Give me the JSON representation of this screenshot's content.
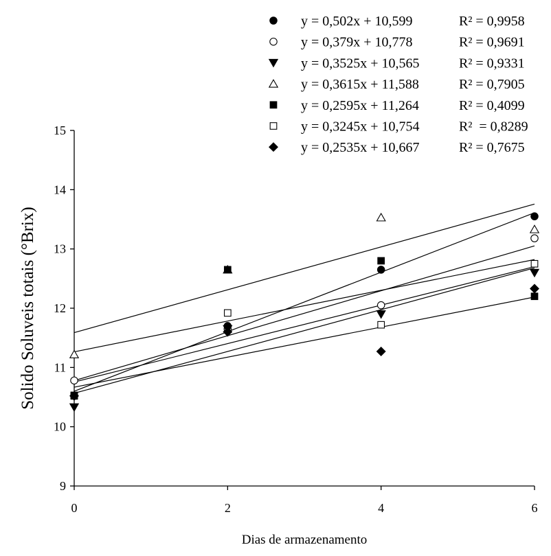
{
  "chart_data": {
    "type": "scatter",
    "xlabel": "Dias de armazenamento",
    "ylabel": "Solido Soluveis totais (°Brix)",
    "xlim": [
      0,
      6
    ],
    "ylim": [
      9,
      15
    ],
    "xticks": [
      "0",
      "2",
      "4",
      "6"
    ],
    "yticks": [
      "9",
      "10",
      "11",
      "12",
      "13",
      "14",
      "15"
    ],
    "grid": false,
    "legend_placement": "top-right",
    "series": [
      {
        "marker": "filled-circle",
        "equation": "y = 0,502x + 10,599",
        "r2": "R² = 0,9958",
        "slope": 0.502,
        "intercept": 10.599,
        "x": [
          0,
          2,
          4,
          6
        ],
        "y": [
          10.52,
          11.7,
          12.65,
          13.55
        ]
      },
      {
        "marker": "open-circle",
        "equation": "y = 0,379x + 10,778",
        "r2": "R² = 0,9691",
        "slope": 0.379,
        "intercept": 10.778,
        "x": [
          0,
          2,
          4,
          6
        ],
        "y": [
          10.78,
          11.65,
          12.05,
          13.18
        ]
      },
      {
        "marker": "filled-triangle-down",
        "equation": "y = 0,3525x + 10,565",
        "r2": "R² = 0,9331",
        "slope": 0.3525,
        "intercept": 10.565,
        "x": [
          0,
          2,
          4,
          6
        ],
        "y": [
          10.33,
          11.65,
          11.9,
          12.6
        ]
      },
      {
        "marker": "open-triangle-up",
        "equation": "y = 0,3615x + 11,588",
        "r2": "R² = 0,7905",
        "slope": 0.3615,
        "intercept": 11.588,
        "x": [
          0,
          2,
          4,
          6
        ],
        "y": [
          11.22,
          12.65,
          13.53,
          13.33
        ]
      },
      {
        "marker": "filled-square",
        "equation": "y = 0,2595x + 11,264",
        "r2": "R² = 0,4099",
        "slope": 0.2595,
        "intercept": 11.264,
        "x": [
          0,
          2,
          4,
          6
        ],
        "y": [
          10.53,
          12.65,
          12.8,
          12.2
        ]
      },
      {
        "marker": "open-square",
        "equation": "y = 0,3245x + 10,754",
        "r2": "R²  = 0,8289",
        "slope": 0.3245,
        "intercept": 10.754,
        "x": [
          0,
          2,
          4,
          6
        ],
        "y": [
          10.52,
          11.92,
          11.72,
          12.75
        ]
      },
      {
        "marker": "filled-diamond",
        "equation": "y = 0,2535x + 10,667",
        "r2": "R² = 0,7675",
        "slope": 0.2535,
        "intercept": 10.667,
        "x": [
          0,
          2,
          4,
          6
        ],
        "y": [
          10.52,
          11.6,
          11.27,
          12.33
        ]
      }
    ]
  }
}
